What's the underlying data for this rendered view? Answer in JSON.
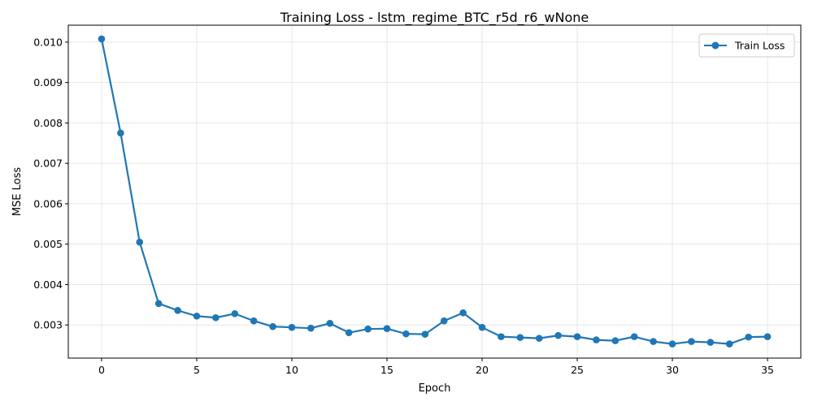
{
  "chart_data": {
    "type": "line",
    "title": "Training Loss - lstm_regime_BTC_r5d_r6_wNone",
    "xlabel": "Epoch",
    "ylabel": "MSE Loss",
    "xlim": [
      -1.75,
      36.75
    ],
    "ylim": [
      0.00218,
      0.01042
    ],
    "xticks": [
      0,
      5,
      10,
      15,
      20,
      25,
      30,
      35
    ],
    "xtick_labels": [
      "0",
      "5",
      "10",
      "15",
      "20",
      "25",
      "30",
      "35"
    ],
    "yticks": [
      0.003,
      0.004,
      0.005,
      0.006,
      0.007,
      0.008,
      0.009,
      0.01
    ],
    "ytick_labels": [
      "0.003",
      "0.004",
      "0.005",
      "0.006",
      "0.007",
      "0.008",
      "0.009",
      "0.010"
    ],
    "grid": true,
    "legend": {
      "position": "top-right"
    },
    "series": [
      {
        "name": "Train Loss",
        "color": "#1f77b4",
        "marker": "circle",
        "x": [
          0,
          1,
          2,
          3,
          4,
          5,
          6,
          7,
          8,
          9,
          10,
          11,
          12,
          13,
          14,
          15,
          16,
          17,
          18,
          19,
          20,
          21,
          22,
          23,
          24,
          25,
          26,
          27,
          28,
          29,
          30,
          31,
          32,
          33,
          34,
          35
        ],
        "y": [
          0.01008,
          0.00775,
          0.00505,
          0.00353,
          0.00336,
          0.00322,
          0.00318,
          0.00328,
          0.0031,
          0.00296,
          0.00294,
          0.00292,
          0.00304,
          0.00281,
          0.0029,
          0.00291,
          0.00278,
          0.00277,
          0.0031,
          0.0033,
          0.00294,
          0.00271,
          0.00269,
          0.00267,
          0.00274,
          0.00271,
          0.00263,
          0.00261,
          0.00271,
          0.00259,
          0.00253,
          0.00259,
          0.00257,
          0.00253,
          0.0027,
          0.00271
        ]
      }
    ]
  }
}
